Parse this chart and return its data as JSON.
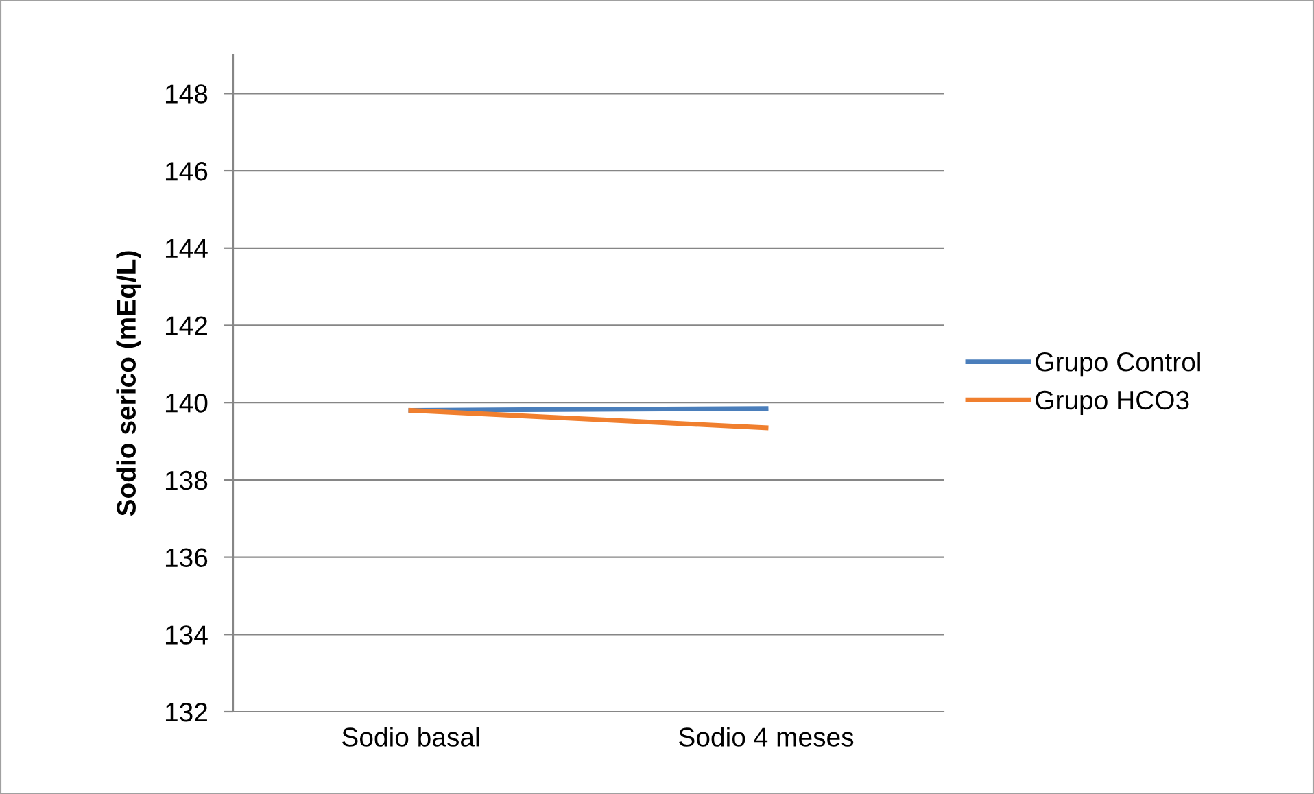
{
  "chart_data": {
    "type": "line",
    "ylabel": "Sodio serico (mEq/L)",
    "categories": [
      "Sodio basal",
      "Sodio 4 meses"
    ],
    "series": [
      {
        "name": "Grupo Control",
        "color": "#4a7ebb",
        "values": [
          139.8,
          139.85
        ]
      },
      {
        "name": "Grupo HCO3",
        "color": "#f07f2e",
        "values": [
          139.8,
          139.35
        ]
      }
    ],
    "ylim": [
      132,
      149
    ],
    "yticks": [
      132,
      134,
      136,
      138,
      140,
      142,
      144,
      146,
      148
    ],
    "grid": "y",
    "legend": "right",
    "marker": "none",
    "line_style": "solid"
  }
}
